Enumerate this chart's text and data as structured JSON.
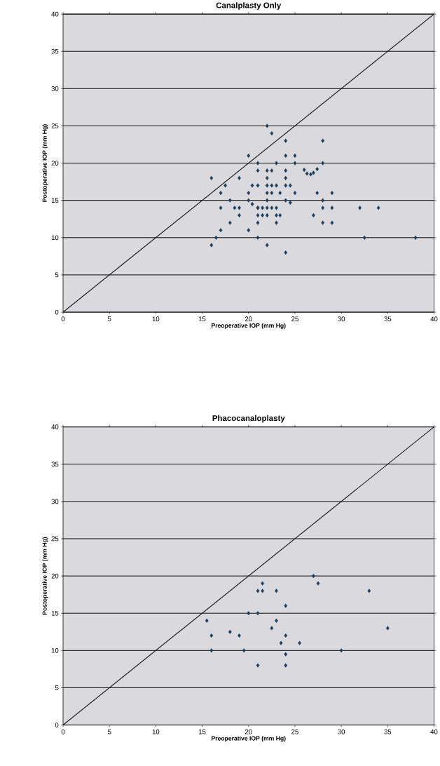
{
  "chart_data": [
    {
      "type": "scatter",
      "title": "Canalplasty Only",
      "xlabel": "Preoperative IOP (mm Hg)",
      "ylabel": "Postoperative IOP (mm Hg)",
      "xlim": [
        0,
        40
      ],
      "ylim": [
        0,
        40
      ],
      "xticks": [
        0,
        5,
        10,
        15,
        20,
        25,
        30,
        35,
        40
      ],
      "yticks": [
        0,
        5,
        10,
        15,
        20,
        25,
        30,
        35,
        40
      ],
      "grid": "y",
      "series": [
        {
          "marker": "diamond",
          "color": "#1c3d5a",
          "x": [
            22,
            22.5,
            24,
            28,
            20,
            24,
            25,
            21,
            23,
            25,
            28,
            21,
            22,
            22.5,
            24,
            26,
            26.3,
            26.7,
            27,
            27.4,
            19,
            22,
            24,
            16,
            17.5,
            20.4,
            21,
            22,
            22.5,
            23,
            24,
            24.5,
            17,
            20,
            22,
            22.5,
            23.4,
            25,
            27.4,
            29,
            18,
            20,
            20.4,
            21,
            22,
            24,
            24.5,
            28,
            17,
            18.5,
            19,
            21,
            21.5,
            22,
            22.5,
            23,
            28,
            29,
            32,
            34,
            19,
            21,
            21.5,
            22,
            23,
            23.4,
            27,
            18,
            21,
            23,
            28,
            29,
            17,
            20,
            16.5,
            21,
            32.5,
            38,
            16,
            22,
            24
          ],
          "values": [
            25,
            24,
            23,
            23,
            21,
            21,
            21,
            20,
            20,
            20,
            20,
            19,
            19,
            19,
            19,
            19.1,
            18.6,
            18.5,
            18.7,
            19.2,
            18,
            18,
            18,
            18,
            17,
            17,
            17,
            17,
            17,
            17,
            17,
            17,
            16,
            16,
            16,
            16,
            16,
            16,
            16,
            16,
            15,
            15,
            14.5,
            14,
            15,
            15,
            14.7,
            15,
            14,
            14,
            14,
            14,
            14,
            14,
            14,
            14,
            14,
            14,
            14,
            14,
            13,
            13,
            13,
            13,
            13,
            13,
            13,
            12,
            12,
            12,
            12,
            12,
            11,
            11,
            10,
            10,
            10,
            10,
            9,
            9,
            8
          ]
        },
        {
          "type": "line",
          "color": "#1a1a1a",
          "x": [
            0,
            40
          ],
          "values": [
            0,
            40
          ]
        }
      ]
    },
    {
      "type": "scatter",
      "title": "Phacocanaloplasty",
      "xlabel": "Preoperative IOP (mm Hg)",
      "ylabel": "Postoperative IOP (mm Hg)",
      "xlim": [
        0,
        40
      ],
      "ylim": [
        0,
        40
      ],
      "xticks": [
        0,
        5,
        10,
        15,
        20,
        25,
        30,
        35,
        40
      ],
      "yticks": [
        0,
        5,
        10,
        15,
        20,
        25,
        30,
        35,
        40
      ],
      "grid": "y",
      "series": [
        {
          "marker": "diamond",
          "color": "#1c3d5a",
          "x": [
            15.5,
            16,
            16,
            18,
            19,
            19.5,
            20,
            21,
            21,
            21.5,
            21.5,
            21,
            22.5,
            23,
            23,
            23.5,
            24,
            24,
            24,
            24,
            25.5,
            27,
            27.5,
            30,
            33,
            35
          ],
          "values": [
            14,
            12,
            10,
            12.5,
            12,
            10,
            15,
            15,
            18,
            19,
            18,
            8,
            13,
            14,
            18,
            11,
            12,
            16,
            9.5,
            8,
            11,
            20,
            19,
            10,
            18,
            13
          ]
        },
        {
          "type": "line",
          "color": "#1a1a1a",
          "x": [
            0,
            40
          ],
          "values": [
            0,
            40
          ]
        }
      ]
    }
  ]
}
